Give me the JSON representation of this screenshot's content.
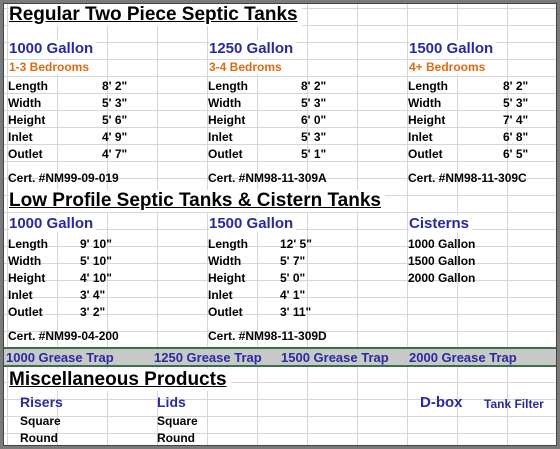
{
  "regular": {
    "title": "Regular Two Piece Septic Tanks",
    "columns": [
      {
        "size": "1000 Gallon",
        "bedrooms": "1-3 Bedrooms",
        "rows": [
          [
            "Length",
            "8' 2\""
          ],
          [
            "Width",
            "5' 3\""
          ],
          [
            "Height",
            "5' 6\""
          ],
          [
            "Inlet",
            "4' 9\""
          ],
          [
            "Outlet",
            "4' 7\""
          ]
        ],
        "cert": "Cert. #NM99-09-019"
      },
      {
        "size": "1250 Gallon",
        "bedrooms": "3-4 Bedroms",
        "rows": [
          [
            "Length",
            "8' 2\""
          ],
          [
            "Width",
            "5' 3\""
          ],
          [
            "Height",
            "6' 0\""
          ],
          [
            "Inlet",
            "5' 3\""
          ],
          [
            "Outlet",
            "5' 1\""
          ]
        ],
        "cert": "Cert. #NM98-11-309A"
      },
      {
        "size": "1500 Gallon",
        "bedrooms": "4+ Bedrooms",
        "rows": [
          [
            "Length",
            "8' 2\""
          ],
          [
            "Width",
            "5' 3\""
          ],
          [
            "Height",
            "7' 4\""
          ],
          [
            "Inlet",
            "6' 8\""
          ],
          [
            "Outlet",
            "6' 5\""
          ]
        ],
        "cert": "Cert. #NM98-11-309C"
      }
    ]
  },
  "low_profile": {
    "title": "Low Profile Septic Tanks & Cistern Tanks",
    "columns": [
      {
        "size": "1000 Gallon",
        "rows": [
          [
            "Length",
            "9' 10\""
          ],
          [
            "Width",
            "5' 10\""
          ],
          [
            "Height",
            "4' 10\""
          ],
          [
            "Inlet",
            "3' 4\""
          ],
          [
            "Outlet",
            "3' 2\""
          ]
        ],
        "cert": "Cert. #NM99-04-200"
      },
      {
        "size": "1500 Gallon",
        "rows": [
          [
            "Length",
            "12' 5\""
          ],
          [
            "Width",
            "5' 7\""
          ],
          [
            "Height",
            "5' 0\""
          ],
          [
            "Inlet",
            "4' 1\""
          ],
          [
            "Outlet",
            "3' 11\""
          ]
        ],
        "cert": "Cert. #NM98-11-309D"
      }
    ],
    "cisterns": {
      "title": "Cisterns",
      "items": [
        "1000 Gallon",
        "1500 Gallon",
        "2000 Gallon"
      ]
    }
  },
  "grease_traps": [
    "1000 Grease Trap",
    "1250 Grease Trap",
    "1500 Grease Trap",
    "2000 Grease Trap"
  ],
  "misc": {
    "title": "Miscellaneous Products",
    "risers": {
      "title": "Risers",
      "items": [
        "Square",
        "Round"
      ]
    },
    "lids": {
      "title": "Lids",
      "items": [
        "Square",
        "Round"
      ]
    },
    "dbox": "D-box",
    "tank_filter": "Tank Filter"
  }
}
